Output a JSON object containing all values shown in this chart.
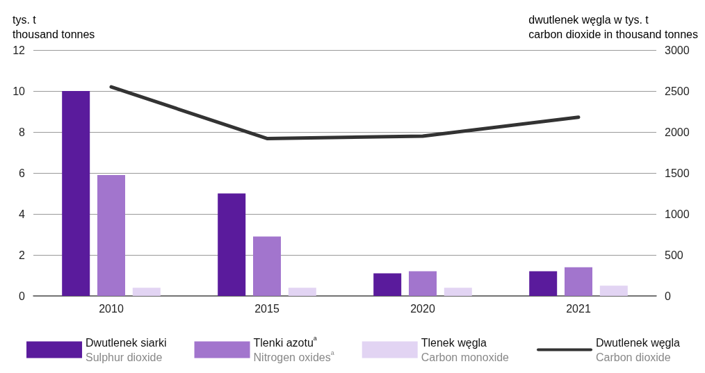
{
  "chart_data": {
    "type": "bar",
    "ylabel": "tys. t\nthousand tonnes",
    "y2label": "dwutlenek węgla w tys. t\ncarbon dioxide in thousand tonnes",
    "categories": [
      "2010",
      "2015",
      "2020",
      "2021"
    ],
    "series": [
      {
        "name": "Dwutlenek siarki\nSulphur dioxide",
        "color": "#5a1b9c",
        "values": [
          10,
          5,
          1.1,
          1.2
        ]
      },
      {
        "name": "Tlenki azotu$^{a}$\nNitrogen oxides$^{a}$",
        "color": "#a275cd",
        "values": [
          5.9,
          2.9,
          1.2,
          1.4
        ]
      },
      {
        "name": "Tlenek węgla\nCarbon monoxide",
        "color": "#e2d4f3",
        "values": [
          0.4,
          0.4,
          0.4,
          0.5
        ]
      },
      {
        "name": "Dwutlenek węgla\nCarbon dioxide",
        "color": "#333333",
        "type": "line",
        "axis": "y2",
        "values": [
          2550,
          1920,
          1950,
          2180
        ]
      }
    ],
    "ylim": [
      0,
      12
    ],
    "yticks": [
      0,
      2,
      4,
      6,
      8,
      10,
      12
    ],
    "y2lim": [
      0,
      3000
    ],
    "y2ticks": [
      0,
      500,
      1000,
      1500,
      2000,
      2500,
      3000
    ],
    "grid": "y",
    "legend": "bottom",
    "marker": "none",
    "line_style": "solid"
  }
}
